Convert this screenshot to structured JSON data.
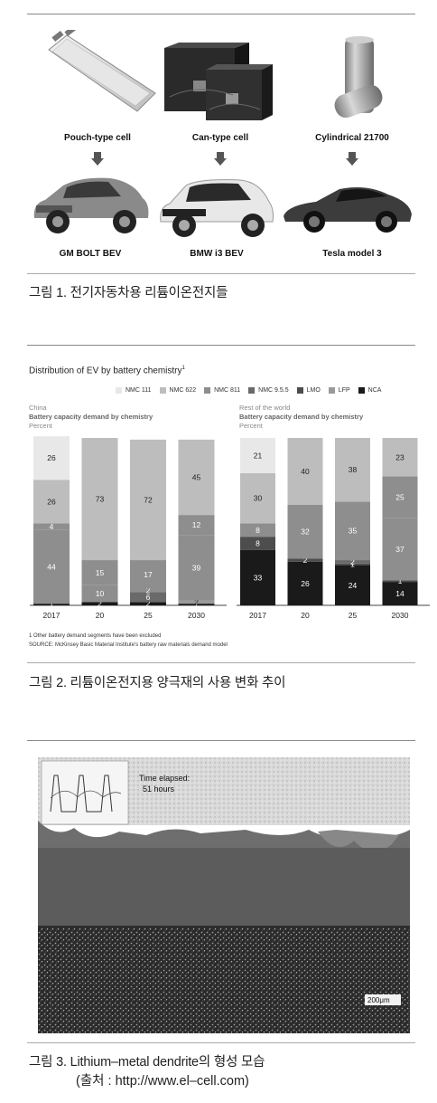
{
  "figure1": {
    "cells": [
      {
        "label": "Pouch-type cell"
      },
      {
        "label": "Can-type cell"
      },
      {
        "label": "Cylindrical 21700"
      }
    ],
    "cars": [
      {
        "label": "GM BOLT BEV"
      },
      {
        "label": "BMW i3 BEV"
      },
      {
        "label": "Tesla model 3"
      }
    ],
    "caption": "그림 1. 전기자동차용 리튬이온전지들"
  },
  "figure2": {
    "title": "Distribution of EV by battery chemistry",
    "title_sup": "1",
    "legend": [
      {
        "name": "NMC 111",
        "color": "#e8e8e8"
      },
      {
        "name": "NMC 622",
        "color": "#bdbdbd"
      },
      {
        "name": "NMC 811",
        "color": "#8e8e8e"
      },
      {
        "name": "NMC 9.5.5",
        "color": "#6a6a6a"
      },
      {
        "name": "LMO",
        "color": "#4d4d4d"
      },
      {
        "name": "LFP",
        "color": "#9a9a9a"
      },
      {
        "name": "NCA",
        "color": "#1a1a1a"
      }
    ],
    "panels": [
      {
        "region": "China",
        "subtitle": "Battery capacity demand by chemistry",
        "unit": "Percent"
      },
      {
        "region": "Rest of the world",
        "subtitle": "Battery capacity demand by chemistry",
        "unit": "Percent"
      }
    ],
    "footnote": "1 Other battery demand segments have been excluded",
    "source": "SOURCE: McKinsey Basic Material Institute's battery raw materials demand model",
    "caption": "그림 2. 리튬이온전지용 양극재의 사용 변화 추이"
  },
  "chart_data": [
    {
      "type": "bar",
      "stacked": true,
      "title": "China",
      "categories": [
        "2017",
        "20",
        "25",
        "2030"
      ],
      "ylim": [
        0,
        100
      ],
      "series": [
        {
          "name": "NCA",
          "values": [
            1,
            2,
            2,
            1
          ]
        },
        {
          "name": "LFP",
          "values": [
            0,
            0,
            0,
            2
          ]
        },
        {
          "name": "NMC 9.5.5",
          "values": [
            0,
            0,
            6,
            0
          ]
        },
        {
          "name": "LMO",
          "values": [
            0,
            0,
            0,
            0
          ]
        },
        {
          "name": "NMC 811",
          "values": [
            44,
            10,
            2,
            39
          ]
        },
        {
          "name": "NMC 811 (upper)",
          "values": [
            4,
            15,
            17,
            12
          ]
        },
        {
          "name": "NMC 622",
          "values": [
            26,
            73,
            72,
            45
          ]
        },
        {
          "name": "NMC 111",
          "values": [
            26,
            0,
            0,
            0
          ]
        }
      ]
    },
    {
      "type": "bar",
      "stacked": true,
      "title": "Rest of the world",
      "categories": [
        "2017",
        "20",
        "25",
        "2030"
      ],
      "ylim": [
        0,
        100
      ],
      "series": [
        {
          "name": "NCA",
          "values": [
            33,
            26,
            24,
            14
          ]
        },
        {
          "name": "LFP",
          "values": [
            0,
            0,
            0,
            0
          ]
        },
        {
          "name": "LMO",
          "values": [
            8,
            2,
            1,
            1
          ]
        },
        {
          "name": "NMC 9.5.5",
          "values": [
            0,
            0,
            2,
            0
          ]
        },
        {
          "name": "NMC 811",
          "values": [
            8,
            32,
            35,
            37
          ]
        },
        {
          "name": "NMC 811 (upper)",
          "values": [
            0,
            0,
            0,
            25
          ]
        },
        {
          "name": "NMC 622",
          "values": [
            30,
            40,
            38,
            23
          ]
        },
        {
          "name": "NMC 111",
          "values": [
            21,
            0,
            0,
            0
          ]
        }
      ]
    }
  ],
  "figure3": {
    "time_label": "Time elapsed:",
    "time_value": "51 hours",
    "scale_bar": "200μm",
    "caption": "그림 3. Lithium–metal dendrite의 형성 모습",
    "source": "(출처 : http://www.el–cell.com)"
  }
}
